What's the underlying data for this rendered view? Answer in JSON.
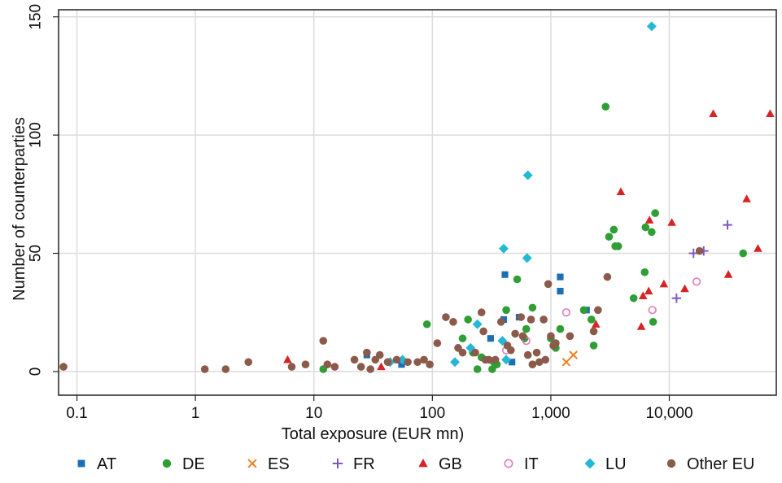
{
  "chart_data": {
    "type": "scatter",
    "title": "",
    "xlabel": "Total exposure (EUR mn)",
    "ylabel": "Number of counterparties",
    "x_scale": "log",
    "xlim": [
      0.07,
      80000
    ],
    "ylim": [
      -10,
      153
    ],
    "x_ticks": [
      0.1,
      1,
      10,
      100,
      1000,
      10000
    ],
    "x_tick_labels": [
      "0.1",
      "1",
      "10",
      "100",
      "1,000",
      "10,000"
    ],
    "y_ticks": [
      0,
      50,
      100,
      150
    ],
    "y_tick_labels": [
      "0",
      "50",
      "100",
      "150"
    ],
    "grid": true,
    "legend_position": "bottom",
    "series": [
      {
        "name": "AT",
        "color": "#1a6fb5",
        "marker": "square",
        "points": [
          [
            28,
            7
          ],
          [
            55,
            3
          ],
          [
            310,
            14
          ],
          [
            400,
            22
          ],
          [
            410,
            41
          ],
          [
            470,
            4
          ],
          [
            540,
            23
          ],
          [
            1200,
            40
          ],
          [
            1200,
            34
          ],
          [
            2000,
            26
          ]
        ]
      },
      {
        "name": "DE",
        "color": "#2e9e35",
        "marker": "circle",
        "points": [
          [
            12,
            1
          ],
          [
            90,
            20
          ],
          [
            180,
            14
          ],
          [
            200,
            22
          ],
          [
            220,
            8
          ],
          [
            240,
            1
          ],
          [
            260,
            6
          ],
          [
            320,
            1
          ],
          [
            330,
            4
          ],
          [
            350,
            3
          ],
          [
            420,
            26
          ],
          [
            520,
            39
          ],
          [
            600,
            14
          ],
          [
            620,
            18
          ],
          [
            700,
            27
          ],
          [
            1000,
            14
          ],
          [
            1100,
            10
          ],
          [
            1200,
            18
          ],
          [
            1900,
            26
          ],
          [
            2200,
            22
          ],
          [
            2300,
            11
          ],
          [
            2900,
            112
          ],
          [
            3100,
            57
          ],
          [
            3400,
            60
          ],
          [
            3500,
            53
          ],
          [
            3700,
            53
          ],
          [
            5000,
            31
          ],
          [
            6200,
            42
          ],
          [
            6300,
            61
          ],
          [
            7100,
            59
          ],
          [
            7300,
            21
          ],
          [
            7600,
            67
          ],
          [
            42000,
            50
          ]
        ]
      },
      {
        "name": "ES",
        "color": "#ee7f22",
        "marker": "x",
        "points": [
          [
            1350,
            4
          ],
          [
            1550,
            7
          ]
        ]
      },
      {
        "name": "FR",
        "color": "#7e57c2",
        "marker": "plus",
        "points": [
          [
            11500,
            31
          ],
          [
            16000,
            50
          ],
          [
            19500,
            51
          ],
          [
            31000,
            62
          ]
        ]
      },
      {
        "name": "GB",
        "color": "#d62424",
        "marker": "triangle",
        "points": [
          [
            6,
            5
          ],
          [
            37,
            2
          ],
          [
            2400,
            20
          ],
          [
            3900,
            76
          ],
          [
            5800,
            19
          ],
          [
            6000,
            32
          ],
          [
            6700,
            34
          ],
          [
            6800,
            64
          ],
          [
            9000,
            37
          ],
          [
            10500,
            63
          ],
          [
            13500,
            35
          ],
          [
            23500,
            109
          ],
          [
            31500,
            41
          ],
          [
            45000,
            73
          ],
          [
            56000,
            52
          ],
          [
            71000,
            109
          ]
        ]
      },
      {
        "name": "IT",
        "color": "#e27bb5",
        "marker": "open-circle",
        "points": [
          [
            420,
            9
          ],
          [
            620,
            13
          ],
          [
            1350,
            25
          ],
          [
            7200,
            26
          ],
          [
            17000,
            38
          ]
        ]
      },
      {
        "name": "LU",
        "color": "#25b8d6",
        "marker": "diamond",
        "points": [
          [
            44,
            4
          ],
          [
            56,
            5
          ],
          [
            155,
            4
          ],
          [
            210,
            10
          ],
          [
            240,
            20
          ],
          [
            390,
            13
          ],
          [
            400,
            52
          ],
          [
            420,
            5
          ],
          [
            630,
            48
          ],
          [
            640,
            83
          ],
          [
            7100,
            146
          ]
        ]
      },
      {
        "name": "Other EU",
        "color": "#8b5a4a",
        "marker": "circle",
        "points": [
          [
            0.077,
            2
          ],
          [
            1.2,
            1
          ],
          [
            1.8,
            1
          ],
          [
            2.8,
            4
          ],
          [
            6.5,
            2
          ],
          [
            8.5,
            3
          ],
          [
            12,
            13
          ],
          [
            13,
            3
          ],
          [
            15,
            2
          ],
          [
            22,
            5
          ],
          [
            25,
            2
          ],
          [
            28,
            8
          ],
          [
            30,
            1
          ],
          [
            33,
            5
          ],
          [
            36,
            7
          ],
          [
            42,
            4
          ],
          [
            50,
            5
          ],
          [
            62,
            4
          ],
          [
            75,
            4
          ],
          [
            85,
            5
          ],
          [
            95,
            3
          ],
          [
            110,
            12
          ],
          [
            130,
            23
          ],
          [
            150,
            21
          ],
          [
            165,
            10
          ],
          [
            180,
            8
          ],
          [
            230,
            8
          ],
          [
            260,
            25
          ],
          [
            270,
            17
          ],
          [
            280,
            5
          ],
          [
            300,
            5
          ],
          [
            340,
            5
          ],
          [
            380,
            21
          ],
          [
            430,
            11
          ],
          [
            460,
            9
          ],
          [
            500,
            16
          ],
          [
            560,
            23
          ],
          [
            580,
            15
          ],
          [
            640,
            7
          ],
          [
            680,
            22
          ],
          [
            700,
            3
          ],
          [
            760,
            8
          ],
          [
            800,
            4
          ],
          [
            870,
            22
          ],
          [
            900,
            5
          ],
          [
            950,
            37
          ],
          [
            1000,
            15
          ],
          [
            1050,
            11
          ],
          [
            1100,
            12
          ],
          [
            1450,
            15
          ],
          [
            2300,
            17
          ],
          [
            2500,
            26
          ],
          [
            3000,
            40
          ],
          [
            18000,
            51
          ]
        ]
      }
    ]
  }
}
